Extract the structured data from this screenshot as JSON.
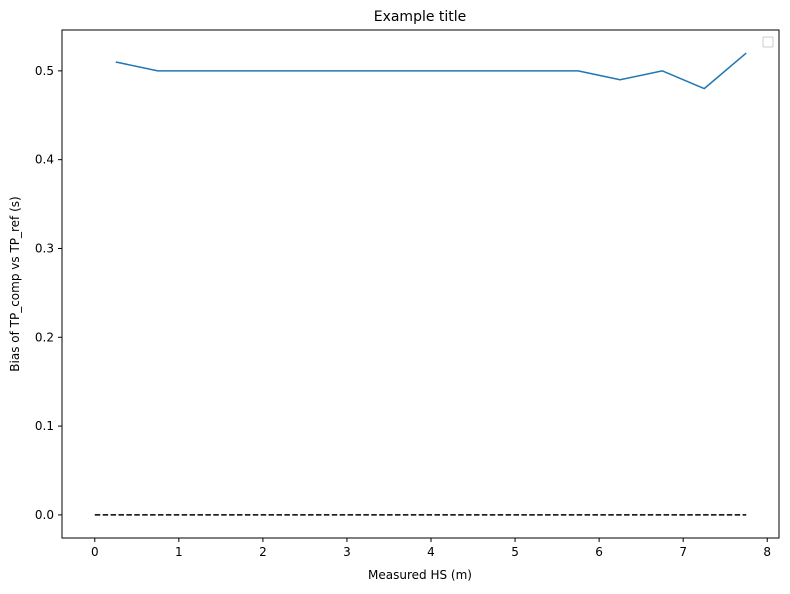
{
  "chart_data": {
    "type": "line",
    "title": "Example title",
    "xlabel": "Measured HS (m)",
    "ylabel": "Bias of TP_comp vs TP_ref (s)",
    "xlim": [
      -0.39,
      8.14
    ],
    "ylim": [
      -0.026,
      0.546
    ],
    "xticks": [
      0,
      1,
      2,
      3,
      4,
      5,
      6,
      7,
      8
    ],
    "yticks": [
      0.0,
      0.1,
      0.2,
      0.3,
      0.4,
      0.5
    ],
    "grid": false,
    "legend": {
      "placement": "top-right",
      "entries": []
    },
    "series": [
      {
        "color": "#1f77b4",
        "style": "solid",
        "x": [
          0.25,
          0.75,
          1.25,
          1.75,
          2.25,
          2.75,
          3.25,
          3.75,
          4.25,
          4.75,
          5.25,
          5.75,
          6.25,
          6.75,
          7.25,
          7.75
        ],
        "y": [
          0.51,
          0.5,
          0.5,
          0.5,
          0.5,
          0.5,
          0.5,
          0.5,
          0.5,
          0.5,
          0.5,
          0.5,
          0.49,
          0.5,
          0.48,
          0.52
        ]
      },
      {
        "color": "#000000",
        "style": "dashed",
        "x": [
          0,
          7.75
        ],
        "y": [
          0,
          0
        ]
      }
    ]
  }
}
